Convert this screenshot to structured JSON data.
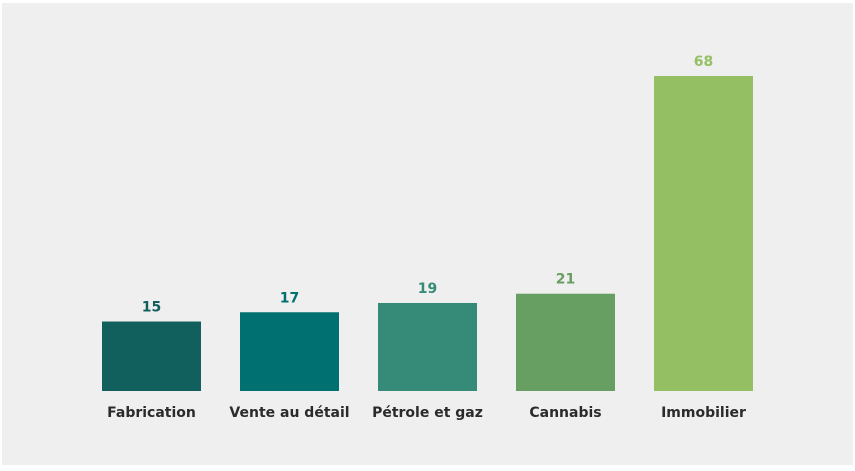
{
  "chart_data": {
    "type": "bar",
    "categories": [
      "Fabrication",
      "Vente au détail",
      "Pétrole et gaz",
      "Cannabis",
      "Immobilier"
    ],
    "values": [
      15,
      17,
      19,
      21,
      68
    ],
    "data_labels": [
      "15",
      "17",
      "19",
      "21",
      "68"
    ],
    "colors": [
      "#12605e",
      "#007170",
      "#358a78",
      "#679f62",
      "#94c063"
    ],
    "label_colors": [
      "#12605e",
      "#007170",
      "#358a78",
      "#679f62",
      "#94c063"
    ],
    "title": "",
    "xlabel": "",
    "ylabel": "",
    "ylim": [
      0,
      68
    ],
    "grid": false,
    "legend": "none"
  }
}
